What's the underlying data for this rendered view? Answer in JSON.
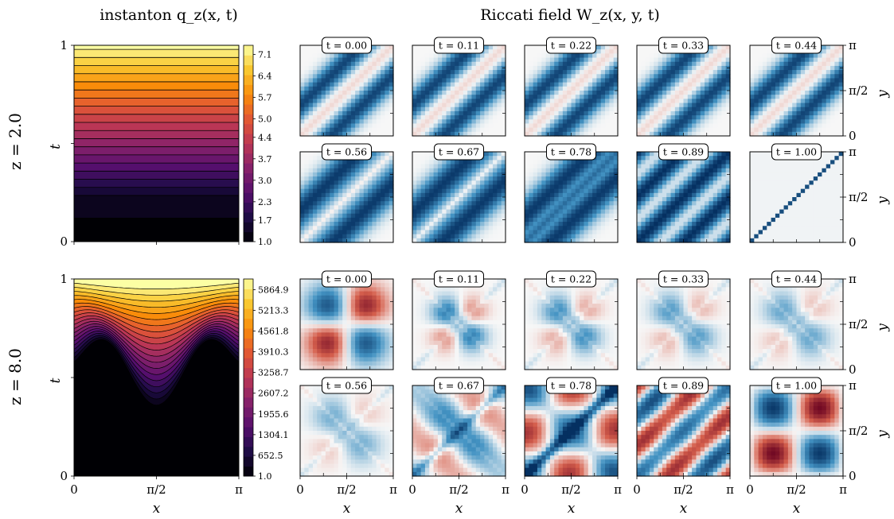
{
  "chart_data": {
    "type": "heatmap",
    "titles": {
      "instanton": "instanton q_z(x, t)",
      "riccati": "Riccati field W_z(x, y, t)"
    },
    "instanton_axis": {
      "xlabel": "x",
      "ylabel": "t",
      "xticks": [
        "0",
        "π/2",
        "π"
      ],
      "yticks": [
        "0",
        "1"
      ],
      "xlim": [
        0,
        3.1416
      ],
      "ylim": [
        0,
        1
      ]
    },
    "riccati_axis": {
      "xlabel": "x",
      "ylabel": "y",
      "xticks": [
        "0",
        "π/2",
        "π"
      ],
      "yticks": [
        "0",
        "π/2",
        "π"
      ]
    },
    "rows": [
      {
        "label": "z = 2.0",
        "z": 2.0,
        "colorbar_ticks": [
          "1.0",
          "1.7",
          "2.3",
          "3.0",
          "3.7",
          "4.4",
          "5.0",
          "5.7",
          "6.4",
          "7.1"
        ],
        "color_range": [
          1.0,
          7.4
        ],
        "snapshot_times": [
          "t = 0.00",
          "t = 0.11",
          "t = 0.22",
          "t = 0.33",
          "t = 0.44",
          "t = 0.56",
          "t = 0.67",
          "t = 0.78",
          "t = 0.89",
          "t = 1.00"
        ]
      },
      {
        "label": "z = 8.0",
        "z": 8.0,
        "colorbar_ticks": [
          "1.0",
          "652.5",
          "1304.1",
          "1955.6",
          "2607.2",
          "3258.7",
          "3910.3",
          "4561.8",
          "5213.3",
          "5864.9"
        ],
        "color_range": [
          1.0,
          6200
        ],
        "snapshot_times": [
          "t = 0.00",
          "t = 0.11",
          "t = 0.22",
          "t = 0.33",
          "t = 0.44",
          "t = 0.56",
          "t = 0.67",
          "t = 0.78",
          "t = 0.89",
          "t = 1.00"
        ]
      }
    ],
    "colormaps": {
      "instanton": "inferno",
      "riccati": "RdBu"
    }
  }
}
